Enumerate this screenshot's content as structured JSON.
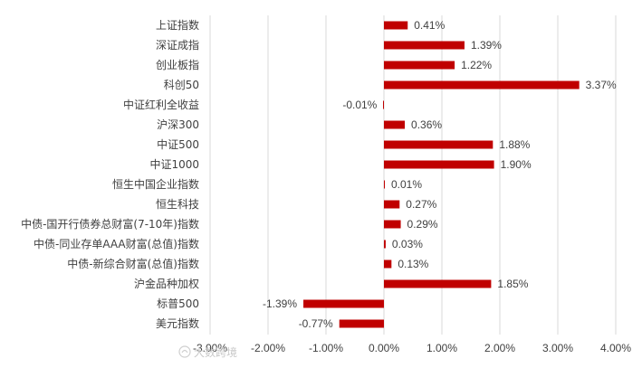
{
  "chart_data": {
    "type": "bar",
    "orientation": "horizontal",
    "categories": [
      "上证指数",
      "深证成指",
      "创业板指",
      "科创50",
      "中证红利全收益",
      "沪深300",
      "中证500",
      "中证1000",
      "恒生中国企业指数",
      "恒生科技",
      "中债-国开行债券总财富(7-10年)指数",
      "中债-同业存单AAA财富(总值)指数",
      "中债-新综合财富(总值)指数",
      "沪金品种加权",
      "标普500",
      "美元指数"
    ],
    "values": [
      0.41,
      1.39,
      1.22,
      3.37,
      -0.01,
      0.36,
      1.88,
      1.9,
      0.01,
      0.27,
      0.29,
      0.03,
      0.13,
      1.85,
      -1.39,
      -0.77
    ],
    "data_labels": [
      "0.41%",
      "1.39%",
      "1.22%",
      "3.37%",
      "-0.01%",
      "0.36%",
      "1.88%",
      "1.90%",
      "0.01%",
      "0.27%",
      "0.29%",
      "0.03%",
      "0.13%",
      "1.85%",
      "-1.39%",
      "-0.77%"
    ],
    "xlim": [
      -3,
      4
    ],
    "x_ticks": [
      -3,
      -2,
      -1,
      0,
      1,
      2,
      3,
      4
    ],
    "x_tick_labels": [
      "-3.00%",
      "-2.00%",
      "-1.00%",
      "0.00%",
      "1.00%",
      "2.00%",
      "3.00%",
      "4.00%"
    ],
    "grid": "vertical",
    "bar_color": "#C00000",
    "title": "",
    "xlabel": "",
    "ylabel": ""
  },
  "watermark": {
    "icon": "watermark-logo-icon",
    "text": "大数跨境"
  }
}
